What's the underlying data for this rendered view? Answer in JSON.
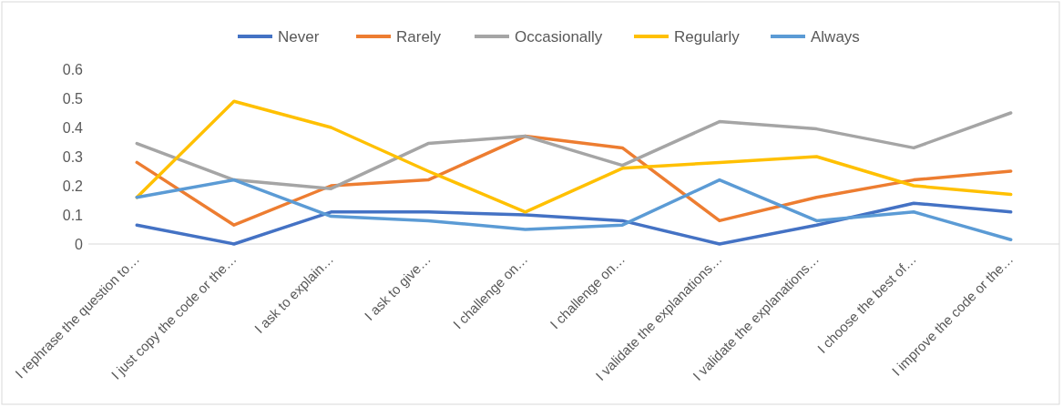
{
  "chart_data": {
    "type": "line",
    "categories": [
      "I rephrase the question to…",
      "I just copy the code or the…",
      "I ask to explain…",
      "I ask to give…",
      "I challenge on…",
      "I challenge on…",
      "I validate the explanations…",
      "I validate the explanations…",
      "I choose the best of…",
      "I improve the code or the…"
    ],
    "series": [
      {
        "name": "Never",
        "color": "#4472c4",
        "values": [
          0.065,
          0,
          0.11,
          0.11,
          0.1,
          0.08,
          0,
          0.065,
          0.14,
          0.11
        ]
      },
      {
        "name": "Rarely",
        "color": "#ed7d31",
        "values": [
          0.28,
          0.065,
          0.2,
          0.22,
          0.37,
          0.33,
          0.08,
          0.16,
          0.22,
          0.25
        ]
      },
      {
        "name": "Occasionally",
        "color": "#a5a5a5",
        "values": [
          0.345,
          0.22,
          0.19,
          0.345,
          0.37,
          0.27,
          0.42,
          0.395,
          0.33,
          0.45
        ]
      },
      {
        "name": "Regularly",
        "color": "#ffc000",
        "values": [
          0.16,
          0.49,
          0.4,
          0.25,
          0.11,
          0.26,
          0.28,
          0.3,
          0.2,
          0.17
        ]
      },
      {
        "name": "Always",
        "color": "#5b9bd5",
        "values": [
          0.16,
          0.22,
          0.095,
          0.08,
          0.05,
          0.065,
          0.22,
          0.08,
          0.11,
          0.015
        ]
      }
    ],
    "ylim": [
      0,
      0.6
    ],
    "yticks": [
      0,
      0.1,
      0.2,
      0.3,
      0.4,
      0.5,
      0.6
    ],
    "legend": "top",
    "marker": "none",
    "line_style": "solid"
  }
}
